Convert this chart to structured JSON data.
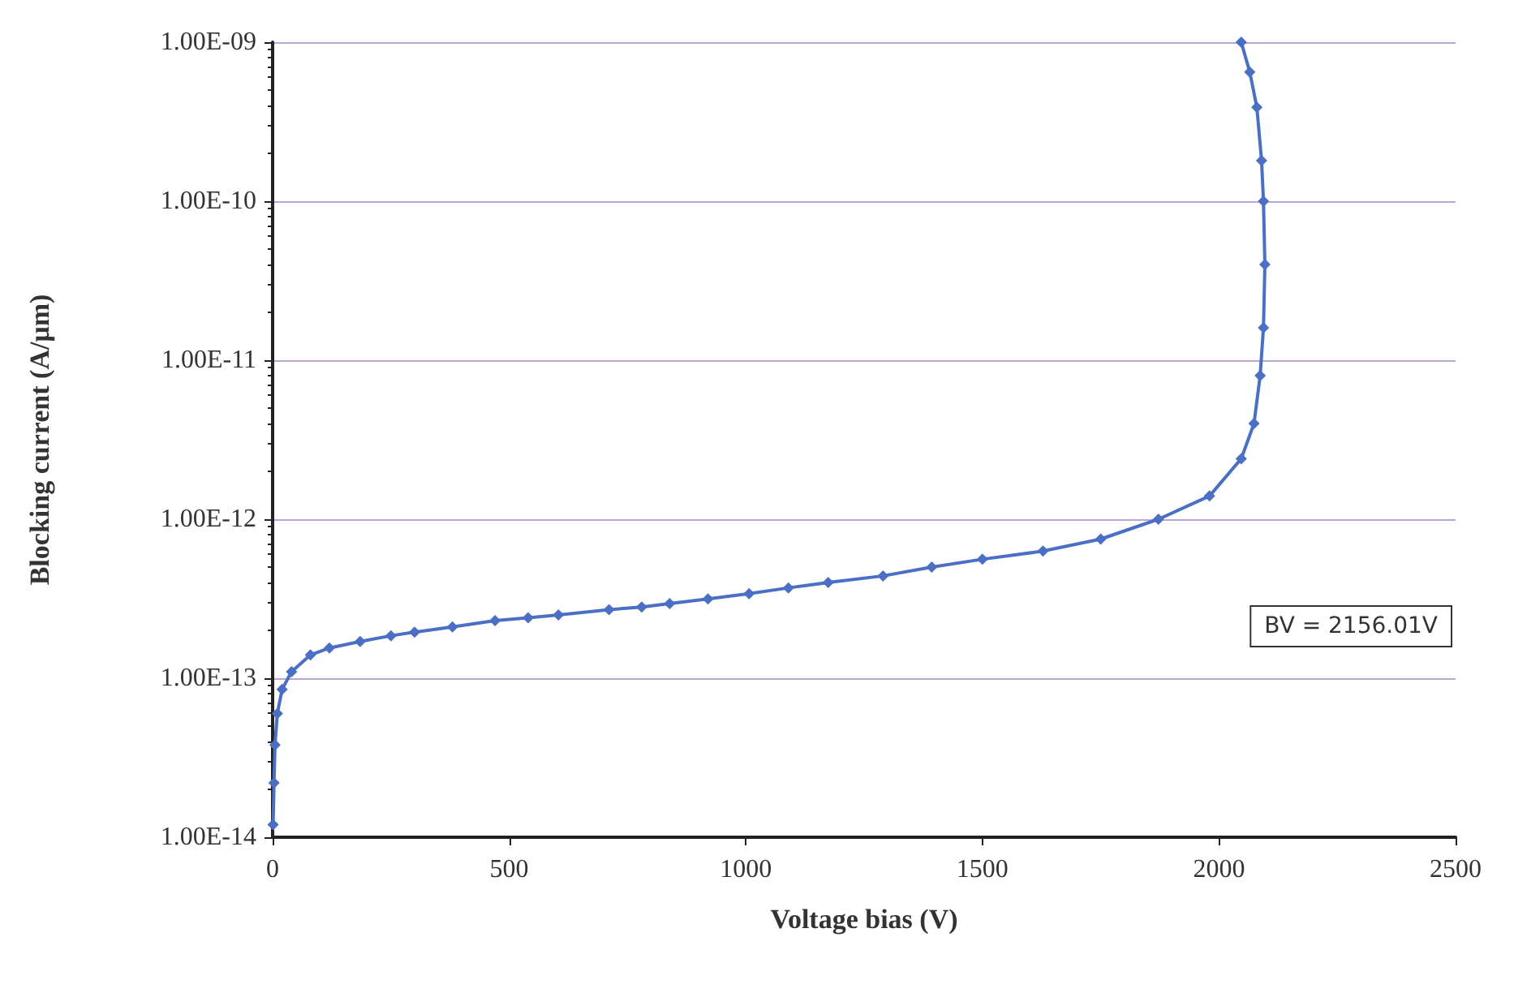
{
  "chart_data": {
    "type": "line",
    "xlabel": "Voltage bias (V)",
    "ylabel": "Blocking current (A/μm)",
    "xlim": [
      0,
      2500
    ],
    "xticks": [
      0,
      500,
      1000,
      1500,
      2000,
      2500
    ],
    "ylim": [
      1e-14,
      1e-09
    ],
    "log": "y",
    "yticks": [
      {
        "value": 1e-14,
        "label": "1.00E-14"
      },
      {
        "value": 1e-13,
        "label": "1.00E-13"
      },
      {
        "value": 1e-12,
        "label": "1.00E-12"
      },
      {
        "value": 1e-11,
        "label": "1.00E-11"
      },
      {
        "value": 1e-10,
        "label": "1.00E-10"
      },
      {
        "value": 1e-09,
        "label": "1.00E-09"
      }
    ],
    "grid": "y",
    "marker": "diamond",
    "line_style": "solid",
    "series": [
      {
        "color": "#4a6fc4",
        "x": [
          1,
          3,
          5,
          10,
          20,
          40,
          80,
          120,
          185,
          250,
          300,
          380,
          470,
          540,
          604,
          711,
          780,
          839,
          920,
          1007,
          1090,
          1174,
          1290,
          1393,
          1500,
          1628,
          1750,
          1872,
          1980,
          2047,
          2074,
          2087,
          2094,
          2097,
          2094,
          2090,
          2080,
          2065,
          2047
        ],
        "values": [
          1.2e-14,
          2.2e-14,
          3.8e-14,
          6e-14,
          8.5e-14,
          1.1e-13,
          1.4e-13,
          1.55e-13,
          1.7e-13,
          1.85e-13,
          1.95e-13,
          2.1e-13,
          2.3e-13,
          2.4e-13,
          2.5e-13,
          2.7e-13,
          2.8e-13,
          2.95e-13,
          3.15e-13,
          3.4e-13,
          3.7e-13,
          4e-13,
          4.4e-13,
          5e-13,
          5.6e-13,
          6.3e-13,
          7.5e-13,
          1e-12,
          1.4e-12,
          2.4e-12,
          4e-12,
          8e-12,
          1.6e-11,
          4e-11,
          1e-10,
          1.8e-10,
          3.9e-10,
          6.5e-10,
          1e-09
        ]
      }
    ],
    "annotations": [
      "BV = 2156.01V"
    ]
  }
}
